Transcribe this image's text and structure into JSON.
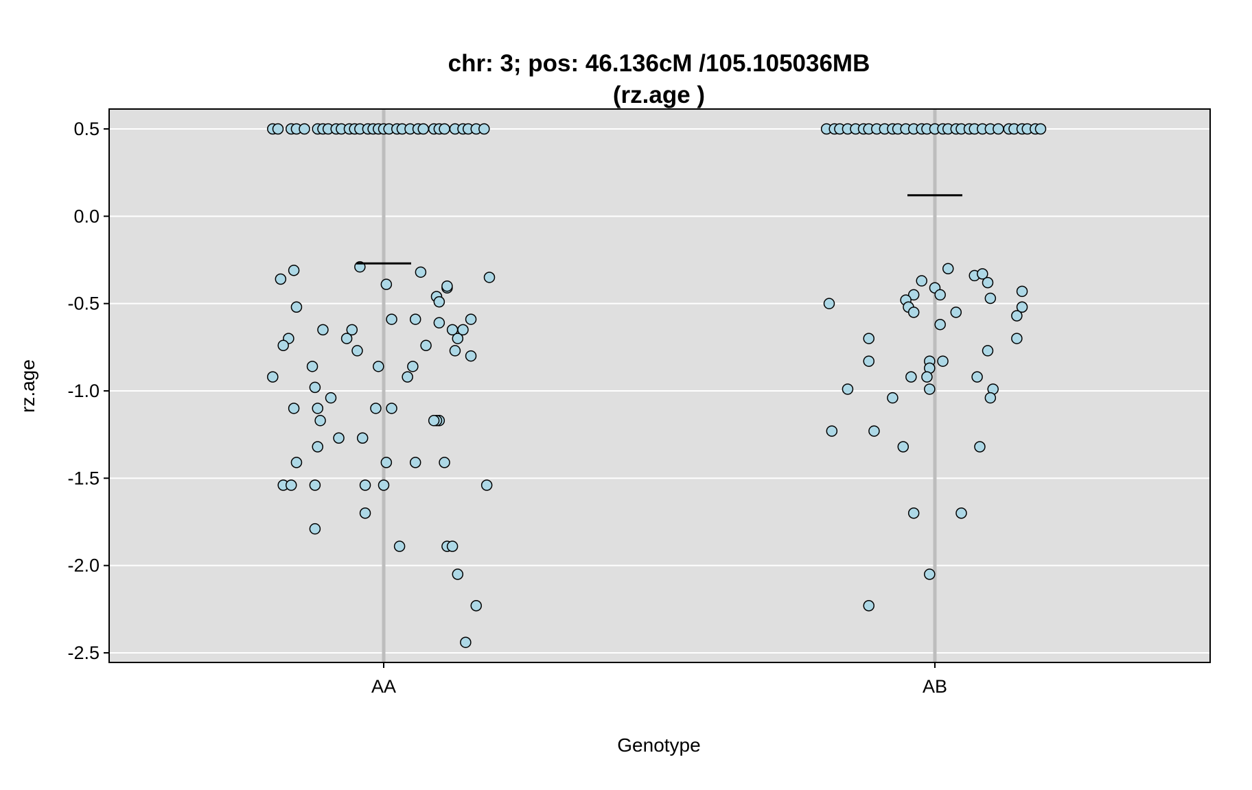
{
  "chart_data": {
    "type": "scatter",
    "title_line1": "chr: 3; pos: 46.136cM /105.105036MB",
    "title_line2": "(rz.age )",
    "xlabel": "Genotype",
    "ylabel": "rz.age",
    "categories": [
      "AA",
      "AB"
    ],
    "ylim": [
      -2.55,
      0.62
    ],
    "yticks": [
      0.5,
      0.0,
      -0.5,
      -1.0,
      -1.5,
      -2.0,
      -2.5
    ],
    "ytick_labels": [
      "0.5",
      "0.0",
      "-0.5",
      "-1.0",
      "-1.5",
      "-2.0",
      "-2.5"
    ],
    "grid": true,
    "colors": {
      "panel_background": "#dfdfdf",
      "gridline": "#ffffff",
      "category_line": "#bdbdbd",
      "point_fill": "#add8e6",
      "point_stroke": "#000000",
      "mean_line": "#000000"
    },
    "groups": [
      {
        "name": "AA",
        "mean": -0.27,
        "points": [
          [
            -0.42,
            0.5
          ],
          [
            -0.4,
            0.5
          ],
          [
            -0.35,
            0.5
          ],
          [
            -0.33,
            0.5
          ],
          [
            -0.3,
            0.5
          ],
          [
            -0.25,
            0.5
          ],
          [
            -0.23,
            0.5
          ],
          [
            -0.21,
            0.5
          ],
          [
            -0.18,
            0.5
          ],
          [
            -0.16,
            0.5
          ],
          [
            -0.13,
            0.5
          ],
          [
            -0.11,
            0.5
          ],
          [
            -0.09,
            0.5
          ],
          [
            -0.06,
            0.5
          ],
          [
            -0.04,
            0.5
          ],
          [
            -0.02,
            0.5
          ],
          [
            0.0,
            0.5
          ],
          [
            0.02,
            0.5
          ],
          [
            0.05,
            0.5
          ],
          [
            0.07,
            0.5
          ],
          [
            0.1,
            0.5
          ],
          [
            0.13,
            0.5
          ],
          [
            0.15,
            0.5
          ],
          [
            0.19,
            0.5
          ],
          [
            0.21,
            0.5
          ],
          [
            0.23,
            0.5
          ],
          [
            0.27,
            0.5
          ],
          [
            0.3,
            0.5
          ],
          [
            0.32,
            0.5
          ],
          [
            0.35,
            0.5
          ],
          [
            0.38,
            0.5
          ],
          [
            -0.39,
            -0.36
          ],
          [
            -0.34,
            -0.31
          ],
          [
            -0.09,
            -0.29
          ],
          [
            0.01,
            -0.39
          ],
          [
            0.14,
            -0.32
          ],
          [
            0.4,
            -0.35
          ],
          [
            0.24,
            -0.41
          ],
          [
            0.24,
            -0.4
          ],
          [
            0.2,
            -0.46
          ],
          [
            0.21,
            -0.49
          ],
          [
            -0.33,
            -0.52
          ],
          [
            -0.23,
            -0.65
          ],
          [
            -0.12,
            -0.65
          ],
          [
            0.26,
            -0.65
          ],
          [
            0.3,
            -0.65
          ],
          [
            -0.36,
            -0.7
          ],
          [
            -0.14,
            -0.7
          ],
          [
            0.28,
            -0.7
          ],
          [
            0.33,
            -0.59
          ],
          [
            0.03,
            -0.59
          ],
          [
            0.12,
            -0.59
          ],
          [
            0.21,
            -0.61
          ],
          [
            -0.38,
            -0.74
          ],
          [
            -0.1,
            -0.77
          ],
          [
            0.16,
            -0.74
          ],
          [
            0.27,
            -0.77
          ],
          [
            0.33,
            -0.8
          ],
          [
            -0.27,
            -0.86
          ],
          [
            -0.02,
            -0.86
          ],
          [
            0.11,
            -0.86
          ],
          [
            -0.42,
            -0.92
          ],
          [
            0.09,
            -0.92
          ],
          [
            -0.26,
            -0.98
          ],
          [
            -0.2,
            -1.04
          ],
          [
            -0.34,
            -1.1
          ],
          [
            -0.25,
            -1.1
          ],
          [
            -0.03,
            -1.1
          ],
          [
            0.03,
            -1.1
          ],
          [
            -0.24,
            -1.17
          ],
          [
            0.21,
            -1.17
          ],
          [
            0.2,
            -1.17
          ],
          [
            0.19,
            -1.17
          ],
          [
            -0.17,
            -1.27
          ],
          [
            -0.08,
            -1.27
          ],
          [
            -0.25,
            -1.32
          ],
          [
            -0.33,
            -1.41
          ],
          [
            0.01,
            -1.41
          ],
          [
            0.12,
            -1.41
          ],
          [
            0.23,
            -1.41
          ],
          [
            -0.38,
            -1.54
          ],
          [
            -0.35,
            -1.54
          ],
          [
            -0.26,
            -1.54
          ],
          [
            -0.07,
            -1.54
          ],
          [
            0.0,
            -1.54
          ],
          [
            0.39,
            -1.54
          ],
          [
            -0.07,
            -1.7
          ],
          [
            -0.26,
            -1.79
          ],
          [
            0.06,
            -1.89
          ],
          [
            0.24,
            -1.89
          ],
          [
            0.26,
            -1.89
          ],
          [
            0.28,
            -2.05
          ],
          [
            0.35,
            -2.23
          ],
          [
            0.31,
            -2.44
          ]
        ]
      },
      {
        "name": "AB",
        "mean": 0.12,
        "points": [
          [
            -0.41,
            0.5
          ],
          [
            -0.38,
            0.5
          ],
          [
            -0.36,
            0.5
          ],
          [
            -0.33,
            0.5
          ],
          [
            -0.3,
            0.5
          ],
          [
            -0.27,
            0.5
          ],
          [
            -0.25,
            0.5
          ],
          [
            -0.22,
            0.5
          ],
          [
            -0.19,
            0.5
          ],
          [
            -0.16,
            0.5
          ],
          [
            -0.14,
            0.5
          ],
          [
            -0.11,
            0.5
          ],
          [
            -0.08,
            0.5
          ],
          [
            -0.05,
            0.5
          ],
          [
            -0.03,
            0.5
          ],
          [
            0.0,
            0.5
          ],
          [
            0.03,
            0.5
          ],
          [
            0.05,
            0.5
          ],
          [
            0.08,
            0.5
          ],
          [
            0.1,
            0.5
          ],
          [
            0.13,
            0.5
          ],
          [
            0.15,
            0.5
          ],
          [
            0.18,
            0.5
          ],
          [
            0.21,
            0.5
          ],
          [
            0.24,
            0.5
          ],
          [
            0.28,
            0.5
          ],
          [
            0.3,
            0.5
          ],
          [
            0.33,
            0.5
          ],
          [
            0.35,
            0.5
          ],
          [
            0.38,
            0.5
          ],
          [
            0.4,
            0.5
          ],
          [
            0.05,
            -0.3
          ],
          [
            0.15,
            -0.34
          ],
          [
            0.18,
            -0.33
          ],
          [
            0.2,
            -0.38
          ],
          [
            -0.05,
            -0.37
          ],
          [
            0.0,
            -0.41
          ],
          [
            0.33,
            -0.43
          ],
          [
            0.02,
            -0.45
          ],
          [
            -0.08,
            -0.45
          ],
          [
            -0.11,
            -0.48
          ],
          [
            0.21,
            -0.47
          ],
          [
            -0.4,
            -0.5
          ],
          [
            -0.1,
            -0.52
          ],
          [
            -0.08,
            -0.55
          ],
          [
            0.08,
            -0.55
          ],
          [
            0.31,
            -0.57
          ],
          [
            0.33,
            -0.52
          ],
          [
            0.02,
            -0.62
          ],
          [
            -0.25,
            -0.7
          ],
          [
            0.31,
            -0.7
          ],
          [
            0.2,
            -0.77
          ],
          [
            -0.25,
            -0.83
          ],
          [
            -0.02,
            -0.83
          ],
          [
            0.03,
            -0.83
          ],
          [
            -0.02,
            -0.87
          ],
          [
            -0.09,
            -0.92
          ],
          [
            -0.03,
            -0.92
          ],
          [
            0.16,
            -0.92
          ],
          [
            -0.33,
            -0.99
          ],
          [
            -0.02,
            -0.99
          ],
          [
            0.22,
            -0.99
          ],
          [
            -0.16,
            -1.04
          ],
          [
            0.21,
            -1.04
          ],
          [
            -0.39,
            -1.23
          ],
          [
            -0.23,
            -1.23
          ],
          [
            -0.12,
            -1.32
          ],
          [
            0.17,
            -1.32
          ],
          [
            -0.08,
            -1.7
          ],
          [
            0.1,
            -1.7
          ],
          [
            -0.02,
            -2.05
          ],
          [
            -0.25,
            -2.23
          ]
        ]
      }
    ]
  }
}
